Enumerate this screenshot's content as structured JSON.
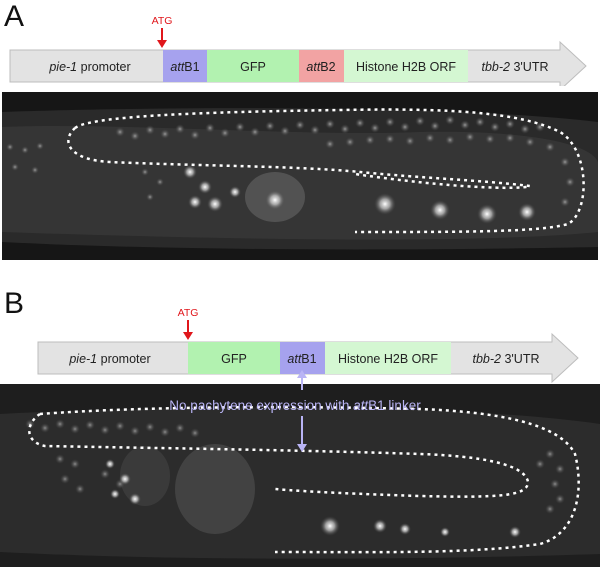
{
  "panels": [
    {
      "letter": "A",
      "atg_label": "ATG",
      "segments": [
        {
          "label": "pie-1 promoter",
          "italic_part": "pie-1",
          "rest": " promoter",
          "color": "#e3e3e3"
        },
        {
          "label": "attB1",
          "italic_part": "att",
          "rest": "B1",
          "color": "#a6a2ee"
        },
        {
          "label": "GFP",
          "italic_part": "",
          "rest": "GFP",
          "color": "#b2f2b0"
        },
        {
          "label": "attB2",
          "italic_part": "att",
          "rest": "B2",
          "color": "#f2a3a3"
        },
        {
          "label": "Histone H2B ORF",
          "italic_part": "",
          "rest": "Histone H2B ORF",
          "color": "#d4f7d2"
        },
        {
          "label": "tbb-2 3'UTR",
          "italic_part": "tbb-2",
          "rest": " 3'UTR",
          "color": "#e3e3e3"
        }
      ]
    },
    {
      "letter": "B",
      "atg_label": "ATG",
      "annotation": {
        "prefix": "No pachytene expression with ",
        "italic_part": "att",
        "suffix": "B1 linker"
      },
      "segments": [
        {
          "label": "pie-1 promoter",
          "italic_part": "pie-1",
          "rest": " promoter",
          "color": "#e3e3e3"
        },
        {
          "label": "GFP",
          "italic_part": "",
          "rest": "GFP",
          "color": "#b2f2b0"
        },
        {
          "label": "attB1",
          "italic_part": "att",
          "rest": "B1",
          "color": "#a6a2ee"
        },
        {
          "label": "Histone H2B ORF",
          "italic_part": "",
          "rest": "Histone H2B ORF",
          "color": "#d4f7d2"
        },
        {
          "label": "tbb-2 3'UTR",
          "italic_part": "tbb-2",
          "rest": " 3'UTR",
          "color": "#e3e3e3"
        }
      ]
    }
  ],
  "colors": {
    "atg_arrow": "#e0161b",
    "annotation": "#b9b4f5",
    "outline": "#ffffff",
    "arrow_body": "#e3e3e3",
    "arrow_edge": "#bdbdbd"
  }
}
